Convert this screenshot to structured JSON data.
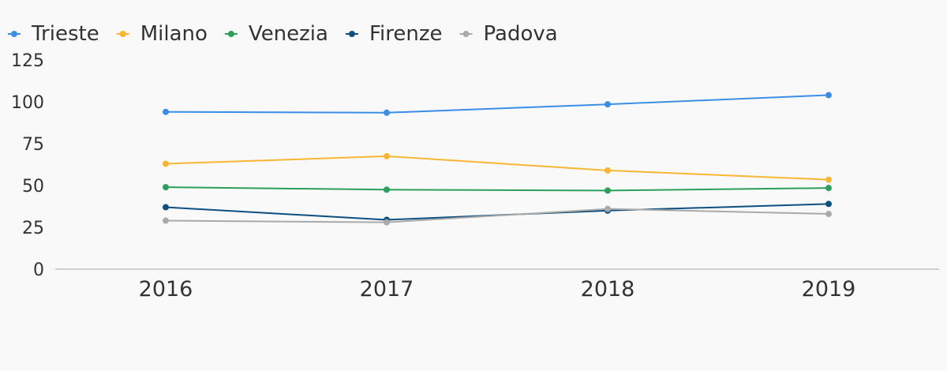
{
  "chart_data": {
    "type": "line",
    "categories": [
      "2016",
      "2017",
      "2018",
      "2019"
    ],
    "series": [
      {
        "name": "Trieste",
        "color": "#3a8ee6",
        "values": [
          94,
          93.5,
          98.5,
          104
        ]
      },
      {
        "name": "Milano",
        "color": "#f7b733",
        "values": [
          63,
          67.5,
          59,
          53.5
        ]
      },
      {
        "name": "Venezia",
        "color": "#2e9e5b",
        "values": [
          49,
          47.5,
          47,
          48.5
        ]
      },
      {
        "name": "Firenze",
        "color": "#0c4f80",
        "values": [
          37,
          29.5,
          35,
          39
        ]
      },
      {
        "name": "Padova",
        "color": "#aaaaaa",
        "values": [
          29,
          28,
          36,
          33
        ]
      }
    ],
    "ylim": [
      0,
      125
    ],
    "yticks": [
      0,
      25,
      50,
      75,
      100,
      125
    ],
    "grid": false,
    "legend": "top-left",
    "title": "",
    "xlabel": "",
    "ylabel": ""
  }
}
